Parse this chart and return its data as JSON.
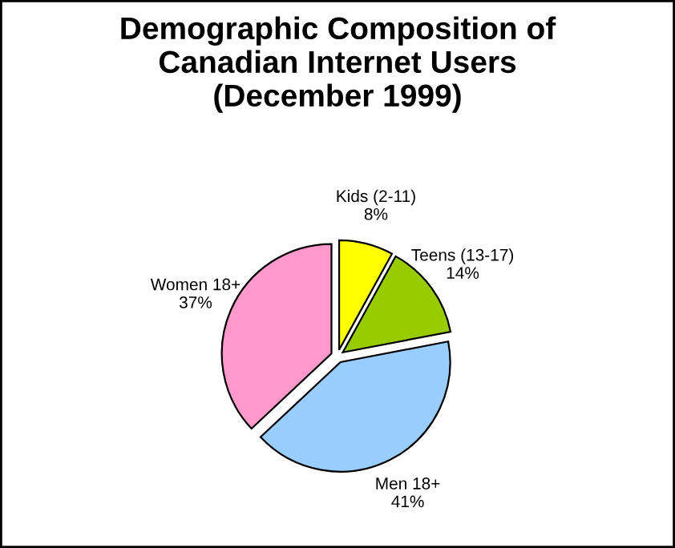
{
  "chart_data": {
    "type": "pie",
    "title": "Demographic Composition of\nCanadian Internet Users\n(December 1999)",
    "categories": [
      "Kids (2-11)",
      "Teens (13-17)",
      "Men 18+",
      "Women 18+"
    ],
    "values": [
      8,
      14,
      41,
      37
    ],
    "value_labels": [
      "8%",
      "14%",
      "41%",
      "37%"
    ],
    "colors": [
      "#ffff00",
      "#99cc00",
      "#99ccff",
      "#ff99cc"
    ],
    "legend": false
  }
}
